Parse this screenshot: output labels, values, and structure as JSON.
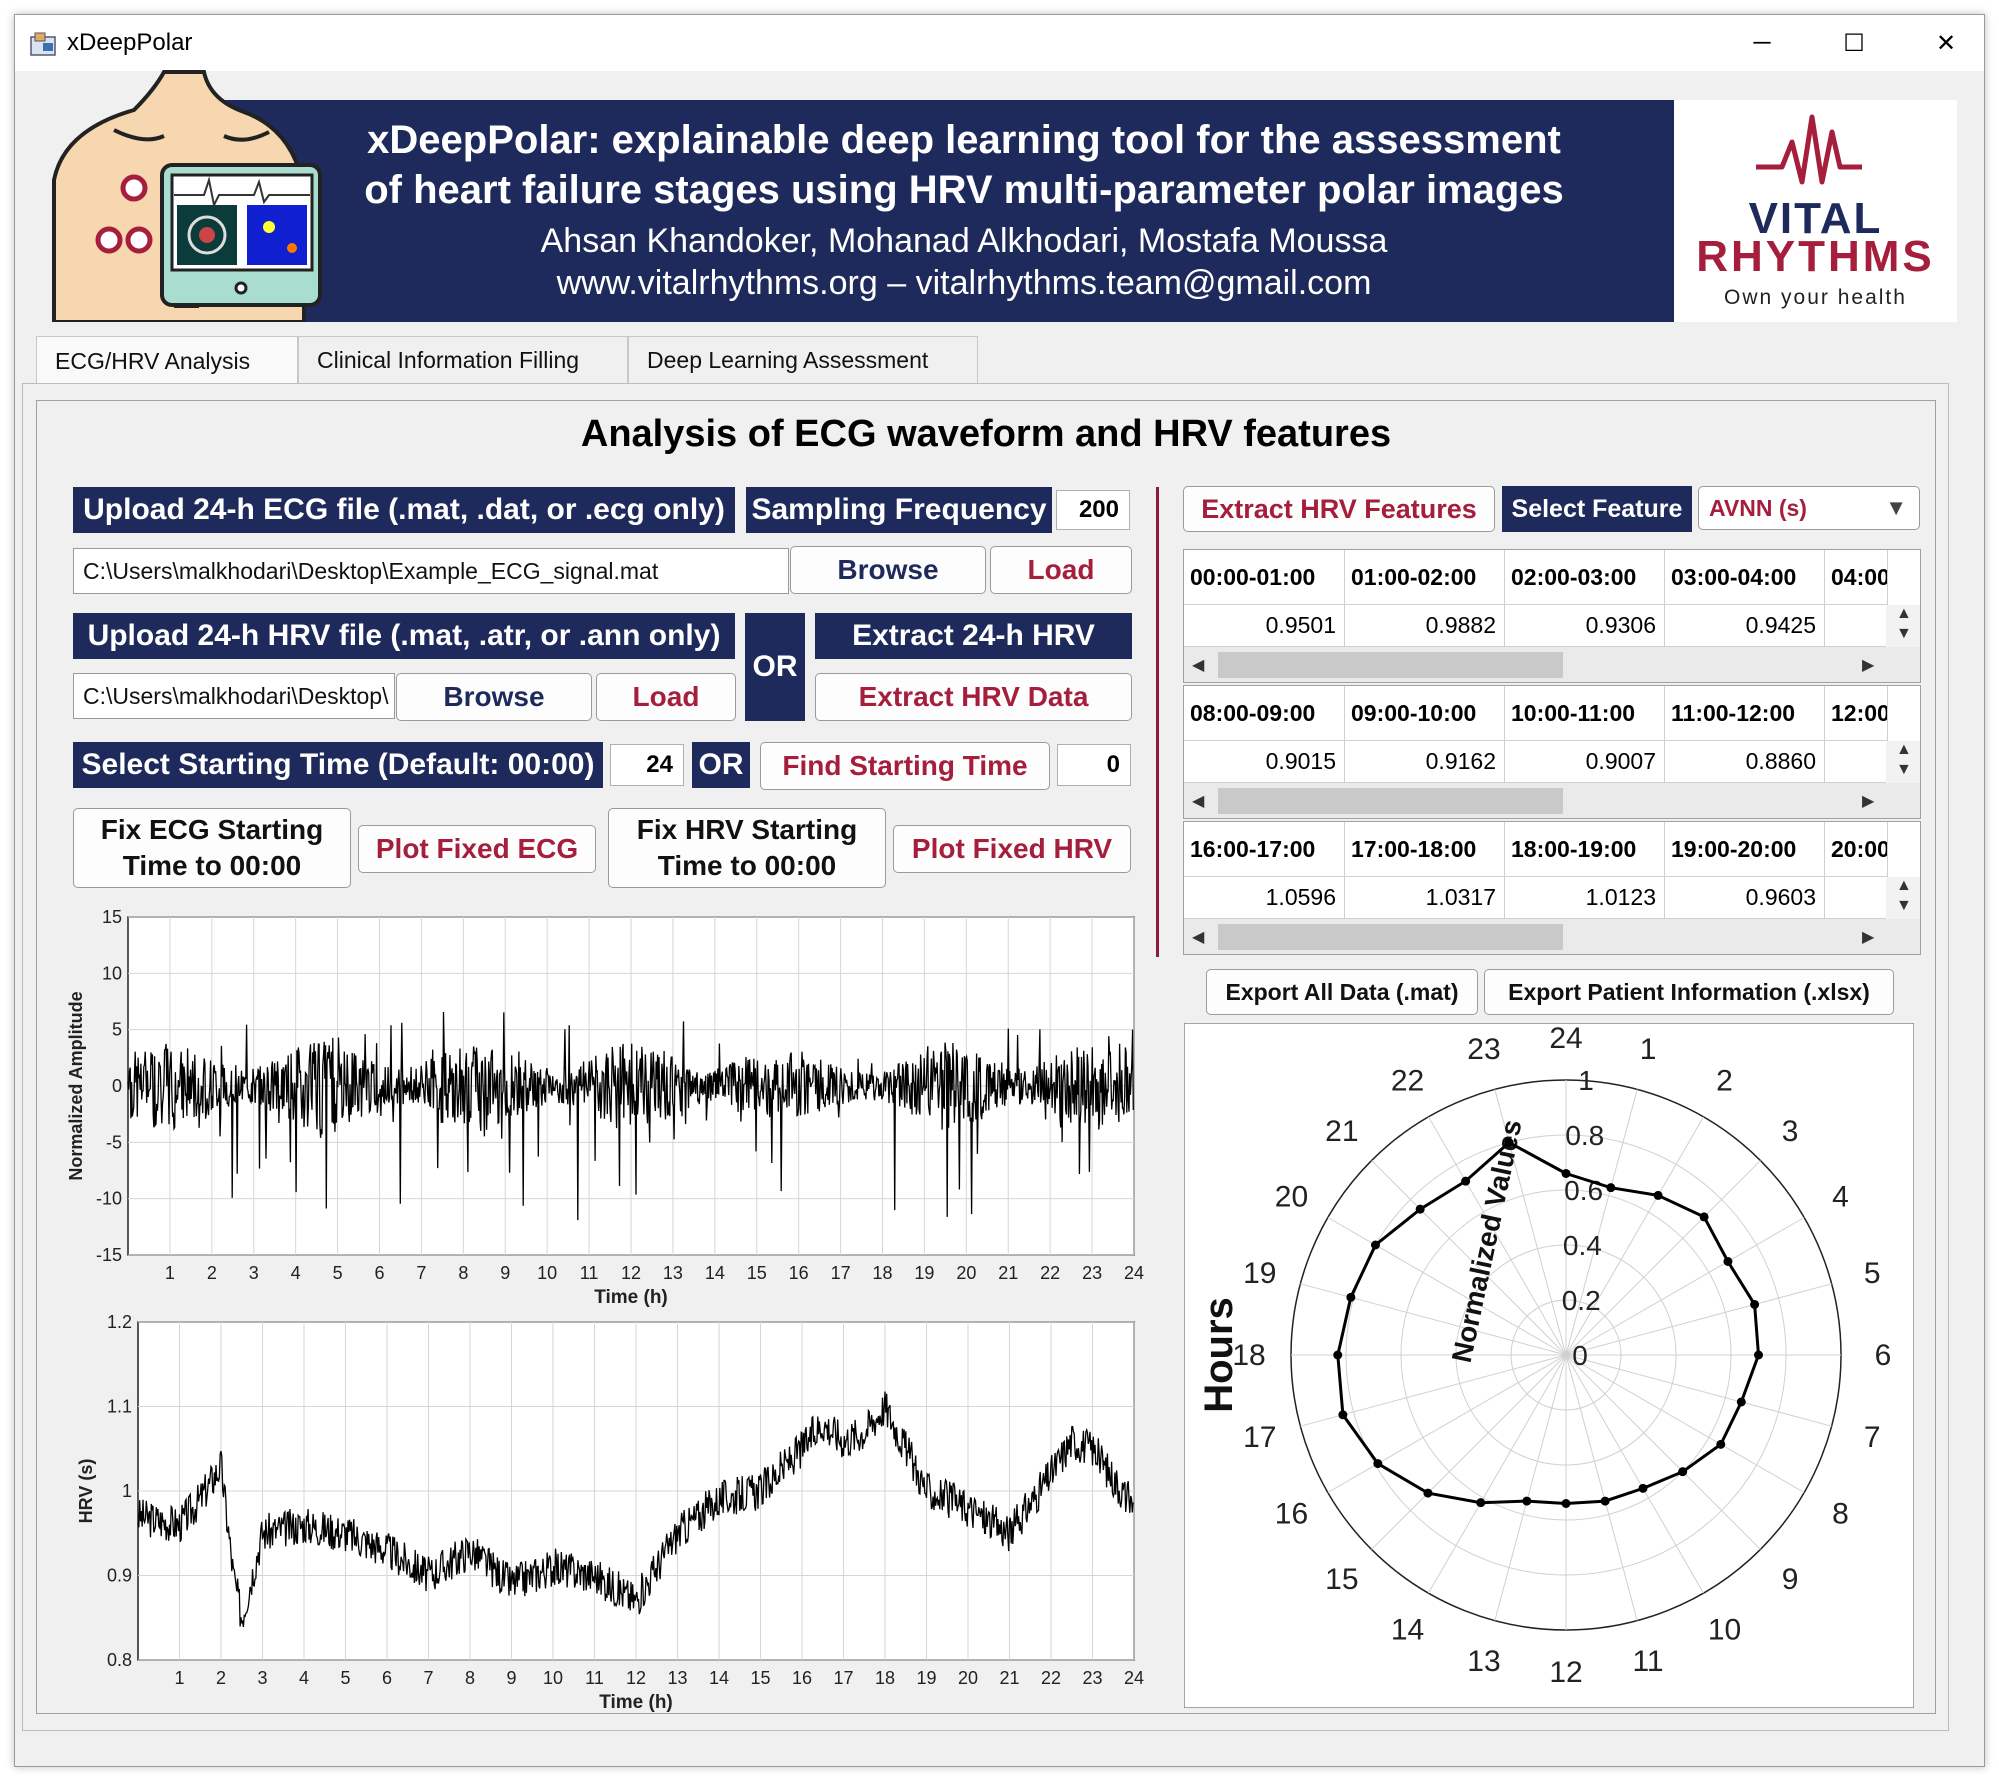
{
  "window": {
    "title": "xDeepPolar",
    "controls": [
      "─",
      "☐",
      "✕"
    ]
  },
  "banner": {
    "line1": "xDeepPolar: explainable deep learning tool for the assessment",
    "line2": "of heart failure stages using HRV multi-parameter polar images",
    "authors": "Ahsan Khandoker, Mohanad Alkhodari, Mostafa Moussa",
    "web": "www.vitalrhythms.org – vitalrhythms.team@gmail.com",
    "logo_word1": "VITAL",
    "logo_word2": "RHYTHMS",
    "logo_tagline": "Own your health"
  },
  "tabs": [
    "ECG/HRV Analysis",
    "Clinical Information Filling",
    "Deep Learning Assessment"
  ],
  "main": {
    "title": "Analysis of ECG waveform and HRV features",
    "ecg_upload_label": "Upload 24-h ECG file (.mat, .dat, or .ecg only)",
    "sampling_label": "Sampling Frequency",
    "sampling_value": "200",
    "ecg_path": "C:\\Users\\malkhodari\\Desktop\\Example_ECG_signal.mat",
    "browse": "Browse",
    "load": "Load",
    "hrv_upload_label": "Upload 24-h HRV file (.mat, .atr, or .ann only)",
    "or": "OR",
    "extract_24h": "Extract 24-h HRV",
    "hrv_path": "C:\\Users\\malkhodari\\Desktop\\",
    "extract_hrv_data": "Extract HRV Data",
    "start_time_label": "Select Starting Time (Default: 00:00)",
    "start_time_value": "24",
    "find_start": "Find Starting Time",
    "find_start_value": "0",
    "fix_ecg_1": "Fix ECG Starting",
    "fix_ecg_2": "Time to 00:00",
    "plot_fixed_ecg": "Plot Fixed ECG",
    "fix_hrv_1": "Fix HRV Starting",
    "fix_hrv_2": "Time to 00:00",
    "plot_fixed_hrv": "Plot Fixed HRV"
  },
  "right": {
    "extract_features": "Extract HRV Features",
    "select_feature": "Select Feature",
    "feature_value": "AVNN (s)",
    "tables": [
      {
        "headers": [
          "00:00-01:00",
          "01:00-02:00",
          "02:00-03:00",
          "03:00-04:00",
          "04:00"
        ],
        "values": [
          "0.9501",
          "0.9882",
          "0.9306",
          "0.9425"
        ]
      },
      {
        "headers": [
          "08:00-09:00",
          "09:00-10:00",
          "10:00-11:00",
          "11:00-12:00",
          "12:00"
        ],
        "values": [
          "0.9015",
          "0.9162",
          "0.9007",
          "0.8860"
        ]
      },
      {
        "headers": [
          "16:00-17:00",
          "17:00-18:00",
          "18:00-19:00",
          "19:00-20:00",
          "20:00"
        ],
        "values": [
          "1.0596",
          "1.0317",
          "1.0123",
          "0.9603"
        ]
      }
    ],
    "export_mat": "Export All Data (.mat)",
    "export_xlsx": "Export Patient Information (.xlsx)"
  },
  "chart_data": [
    {
      "type": "line",
      "xlabel": "Time (h)",
      "ylabel": "Normalized Amplitude",
      "xlim": [
        0,
        24
      ],
      "ylim": [
        -15,
        15
      ],
      "xticks": [
        1,
        2,
        3,
        4,
        5,
        6,
        7,
        8,
        9,
        10,
        11,
        12,
        13,
        14,
        15,
        16,
        17,
        18,
        19,
        20,
        21,
        22,
        23,
        24
      ],
      "yticks": [
        -15,
        -10,
        -5,
        0,
        5,
        10,
        15
      ],
      "grid": true
    },
    {
      "type": "line",
      "xlabel": "Time (h)",
      "ylabel": "HRV (s)",
      "xlim": [
        0,
        24
      ],
      "ylim": [
        0.8,
        1.2
      ],
      "xticks": [
        1,
        2,
        3,
        4,
        5,
        6,
        7,
        8,
        9,
        10,
        11,
        12,
        13,
        14,
        15,
        16,
        17,
        18,
        19,
        20,
        21,
        22,
        23,
        24
      ],
      "yticks": [
        0.8,
        0.9,
        1,
        1.1,
        1.2
      ],
      "yticklabels": [
        "0.8",
        "0.9",
        "1",
        "1.1",
        "1.2"
      ],
      "grid": true,
      "series": [
        {
          "x": [
            0,
            1,
            1.5,
            2,
            2.3,
            2.5,
            3,
            4,
            5,
            6,
            7,
            8,
            9,
            10,
            11,
            12,
            13,
            14,
            15,
            16,
            16.5,
            17,
            17.5,
            18,
            19,
            20,
            21,
            22,
            22.5,
            23,
            24
          ],
          "values": [
            0.97,
            0.96,
            0.99,
            1.03,
            0.9,
            0.85,
            0.95,
            0.96,
            0.95,
            0.93,
            0.9,
            0.93,
            0.89,
            0.91,
            0.9,
            0.87,
            0.95,
            0.99,
            1.0,
            1.05,
            1.08,
            1.06,
            1.07,
            1.1,
            1.0,
            0.98,
            0.95,
            1.02,
            1.06,
            1.05,
            0.98
          ]
        }
      ]
    },
    {
      "type": "polar",
      "ylabel": "Hours",
      "rlabel": "Normalized Values",
      "theta_labels": [
        "24",
        "1",
        "2",
        "3",
        "4",
        "5",
        "6",
        "7",
        "8",
        "9",
        "10",
        "11",
        "12",
        "13",
        "14",
        "15",
        "16",
        "17",
        "18",
        "19",
        "20",
        "21",
        "22",
        "23"
      ],
      "rticks": [
        0,
        0.2,
        0.4,
        0.6,
        0.8,
        1
      ],
      "r_values": [
        0.66,
        0.63,
        0.67,
        0.71,
        0.68,
        0.71,
        0.7,
        0.66,
        0.65,
        0.6,
        0.56,
        0.55,
        0.54,
        0.55,
        0.62,
        0.71,
        0.79,
        0.84,
        0.83,
        0.81,
        0.8,
        0.75,
        0.73,
        0.8
      ]
    }
  ]
}
